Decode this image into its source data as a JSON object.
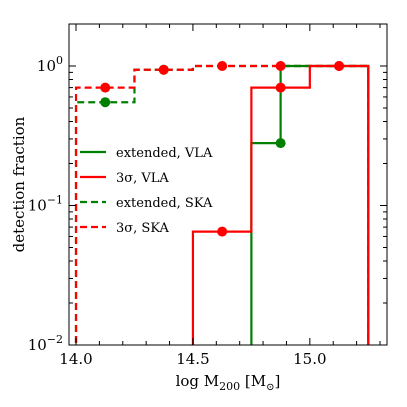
{
  "chart_data": {
    "type": "line",
    "xlabel_main": "log M",
    "xlabel_sub": "200",
    "xlabel_unit_open": " [M",
    "xlabel_unit_sub": "⊙",
    "xlabel_unit_close": "]",
    "ylabel": "detection fraction",
    "xlim": [
      13.97,
      15.33
    ],
    "ylim": [
      0.01,
      2.0
    ],
    "yscale": "log",
    "x_ticks": [
      {
        "value": 14.0,
        "label": "14.0"
      },
      {
        "value": 14.5,
        "label": "14.5"
      },
      {
        "value": 15.0,
        "label": "15.0"
      }
    ],
    "y_ticks": [
      {
        "value": 1.0,
        "label": "10",
        "exp": "0"
      },
      {
        "value": 0.1,
        "label": "10",
        "exp": "−1"
      },
      {
        "value": 0.01,
        "label": "10",
        "exp": "−2"
      }
    ],
    "legend_position": "center-left",
    "series": [
      {
        "name": "extended, VLA",
        "color": "#008000",
        "dash": false,
        "bin_edges": [
          14.75,
          14.875,
          15.0,
          15.25
        ],
        "values": [
          0.28,
          1.0,
          1.0
        ],
        "points": [
          {
            "x": 14.875,
            "y": 0.28
          }
        ]
      },
      {
        "name": "3σ, VLA",
        "color": "#ff0000",
        "dash": false,
        "bin_edges": [
          14.5,
          14.625,
          14.75,
          14.875,
          15.0,
          15.25
        ],
        "values": [
          0.065,
          0.065,
          0.7,
          0.7,
          1.0
        ],
        "points": [
          {
            "x": 14.625,
            "y": 0.065
          },
          {
            "x": 14.875,
            "y": 0.7
          },
          {
            "x": 15.125,
            "y": 1.0
          }
        ]
      },
      {
        "name": "extended, SKA",
        "color": "#008000",
        "dash": true,
        "bin_edges": [
          14.0,
          14.25,
          14.375,
          14.5,
          14.625,
          14.75,
          14.875,
          15.0,
          15.25
        ],
        "values": [
          0.55,
          0.94,
          0.94,
          1.0,
          1.0,
          1.0,
          1.0,
          1.0
        ],
        "points": [
          {
            "x": 14.125,
            "y": 0.55
          },
          {
            "x": 14.375,
            "y": 0.94
          }
        ]
      },
      {
        "name": "3σ, SKA",
        "color": "#ff0000",
        "dash": true,
        "bin_edges": [
          14.0,
          14.25,
          14.375,
          14.5,
          14.625,
          14.75,
          14.875,
          15.0,
          15.25
        ],
        "values": [
          0.7,
          0.94,
          0.94,
          1.0,
          1.0,
          1.0,
          1.0,
          1.0
        ],
        "points": [
          {
            "x": 14.125,
            "y": 0.7
          },
          {
            "x": 14.375,
            "y": 0.94
          },
          {
            "x": 14.625,
            "y": 1.0
          },
          {
            "x": 14.875,
            "y": 1.0
          },
          {
            "x": 15.125,
            "y": 1.0
          }
        ]
      }
    ]
  }
}
